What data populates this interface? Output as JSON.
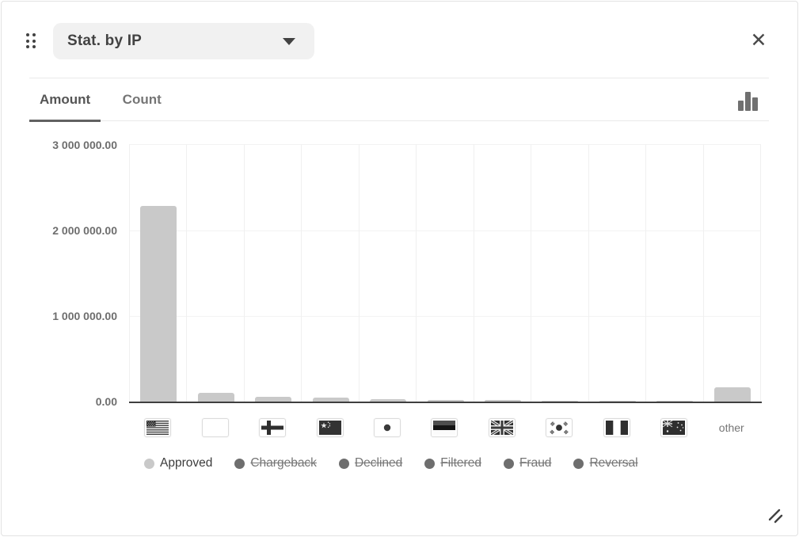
{
  "widget": {
    "title": "Stat. by IP",
    "tabs": [
      {
        "label": "Amount",
        "active": true
      },
      {
        "label": "Count",
        "active": false
      }
    ]
  },
  "icons": {
    "close": "✕",
    "drag_handle": "six-dot-grip",
    "dropdown_caret": "triangle-down",
    "chart_type": "bar-chart",
    "resize": "double-diagonal-lines"
  },
  "chart_data": {
    "type": "bar",
    "title": "Stat. by IP — Amount",
    "xlabel": "",
    "ylabel": "",
    "ylim": [
      0,
      3000000
    ],
    "ytick_labels": [
      "3 000 000.00",
      "2 000 000.00",
      "1 000 000.00",
      "0.00"
    ],
    "ytick_values": [
      3000000,
      2000000,
      1000000,
      0
    ],
    "grid": true,
    "legend_position": "bottom",
    "x_axis_style": "country-flags",
    "categories": [
      "United States",
      "blank flag",
      "Finland",
      "China",
      "Japan",
      "Estonia",
      "United Kingdom",
      "South Korea",
      "Nigeria",
      "Australia",
      "other"
    ],
    "series": [
      {
        "name": "Approved",
        "enabled": true,
        "color": "#c9c9c9",
        "values": [
          2270000,
          100000,
          55000,
          45000,
          25000,
          20000,
          15000,
          12000,
          10000,
          8000,
          170000
        ]
      },
      {
        "name": "Chargeback",
        "enabled": false,
        "color": "#6e6e6e",
        "values": []
      },
      {
        "name": "Declined",
        "enabled": false,
        "color": "#6e6e6e",
        "values": []
      },
      {
        "name": "Filtered",
        "enabled": false,
        "color": "#6e6e6e",
        "values": []
      },
      {
        "name": "Fraud",
        "enabled": false,
        "color": "#6e6e6e",
        "values": []
      },
      {
        "name": "Reversal",
        "enabled": false,
        "color": "#6e6e6e",
        "values": []
      }
    ],
    "other_label": "other"
  }
}
